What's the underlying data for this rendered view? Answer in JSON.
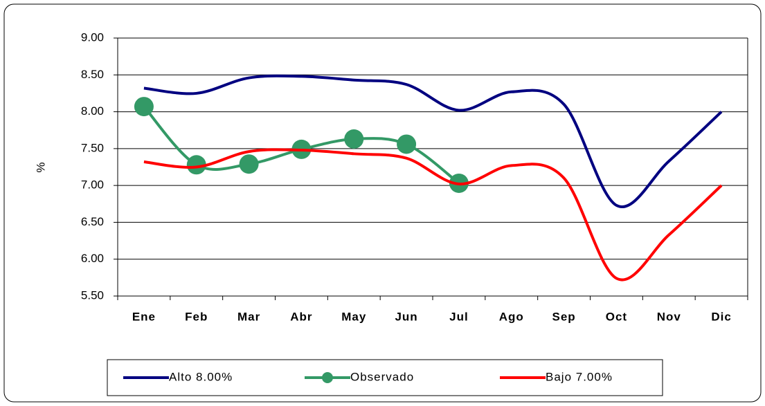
{
  "chart_data": {
    "type": "line",
    "y_label": "%",
    "categories": [
      "Ene",
      "Feb",
      "Mar",
      "Abr",
      "May",
      "Jun",
      "Jul",
      "Ago",
      "Sep",
      "Oct",
      "Nov",
      "Dic"
    ],
    "series": [
      {
        "name": "Alto 8.00%",
        "color": "#000080",
        "markers": false,
        "values": [
          8.32,
          8.25,
          8.46,
          8.48,
          8.43,
          8.37,
          8.02,
          8.27,
          8.1,
          6.73,
          7.33,
          8.0
        ]
      },
      {
        "name": "Observado",
        "color": "#339966",
        "markers": true,
        "values": [
          8.07,
          7.28,
          7.29,
          7.49,
          7.63,
          7.56,
          7.03,
          null,
          null,
          null,
          null,
          null
        ]
      },
      {
        "name": "Bajo 7.00%",
        "color": "#ff0000",
        "markers": false,
        "values": [
          7.32,
          7.25,
          7.46,
          7.48,
          7.43,
          7.37,
          7.02,
          7.27,
          7.1,
          5.74,
          6.33,
          7.0
        ]
      }
    ],
    "ylim": [
      5.5,
      9.0
    ],
    "yticks": [
      {
        "value": 5.5,
        "label": "5.50"
      },
      {
        "value": 6,
        "label": "6.00"
      },
      {
        "value": 6.5,
        "label": "6.50"
      },
      {
        "value": 7,
        "label": "7.00"
      },
      {
        "value": 7.5,
        "label": "7.50"
      },
      {
        "value": 8,
        "label": "8.00"
      },
      {
        "value": 8.5,
        "label": "8.50"
      },
      {
        "value": 9,
        "label": "9.00"
      }
    ],
    "grid": true,
    "smooth": true,
    "legend": "bottom"
  }
}
